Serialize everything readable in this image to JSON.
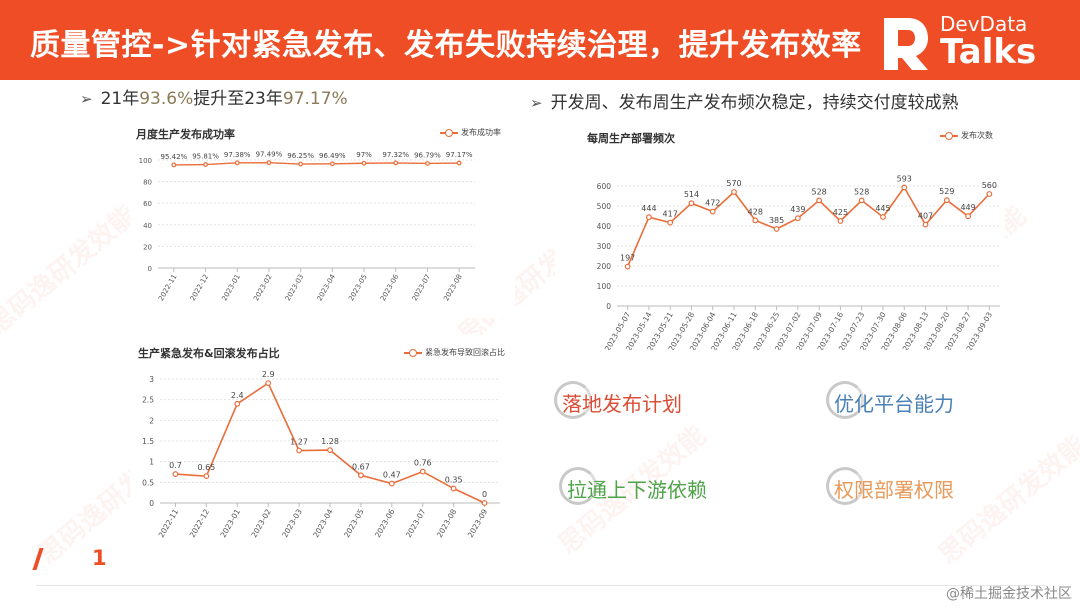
{
  "header": {
    "title": "质量管控->针对紧急发布、发布失败持续治理，提升发布效率",
    "logo_small": "DevData",
    "logo_big": "Talks"
  },
  "bullets": {
    "left": {
      "pre": "21年",
      "v1": "93.6%",
      "mid": "提升至23年",
      "v2": "97.17%"
    },
    "right": {
      "text": "开发周、发布周生产发布频次稳定，持续交付度较成熟"
    }
  },
  "chart_data": [
    {
      "type": "line",
      "title": "月度生产发布成功率",
      "legend": "发布成功率",
      "categories": [
        "2022-11",
        "2022-12",
        "2023-01",
        "2023-02",
        "2023-03",
        "2023-04",
        "2023-05",
        "2023-06",
        "2023-07",
        "2023-08"
      ],
      "values": [
        95.42,
        95.81,
        97.38,
        97.49,
        96.25,
        96.49,
        97,
        97.32,
        96.79,
        97.17
      ],
      "labels": [
        "95.42%",
        "95.81%",
        "97.38%",
        "97.49%",
        "96.25%",
        "96.49%",
        "97%",
        "97.32%",
        "96.79%",
        "97.17%"
      ],
      "yticks": [
        0,
        20,
        40,
        60,
        80,
        100
      ],
      "ylim": [
        0,
        100
      ],
      "grid": true,
      "legend_position": "top-right"
    },
    {
      "type": "line",
      "title": "每周生产部署频次",
      "legend": "发布次数",
      "categories": [
        "2023-05-07",
        "2023-05-14",
        "2023-05-21",
        "2023-05-28",
        "2023-06-04",
        "2023-06-11",
        "2023-06-18",
        "2023-06-25",
        "2023-07-02",
        "2023-07-09",
        "2023-07-16",
        "2023-07-23",
        "2023-07-30",
        "2023-08-06",
        "2023-08-13",
        "2023-08-20",
        "2023-08-27",
        "2023-09-03"
      ],
      "values": [
        197,
        444,
        417,
        514,
        472,
        570,
        428,
        385,
        439,
        528,
        425,
        528,
        445,
        593,
        407,
        529,
        449,
        560
      ],
      "labels": [
        "197",
        "444",
        "417",
        "514",
        "472",
        "570",
        "428",
        "385",
        "439",
        "528",
        "425",
        "528",
        "445",
        "593",
        "407",
        "529",
        "449",
        "560"
      ],
      "yticks": [
        0,
        100,
        200,
        300,
        400,
        500,
        600
      ],
      "ylim": [
        0,
        600
      ],
      "grid": true,
      "legend_position": "top-right"
    },
    {
      "type": "line",
      "title": "生产紧急发布&回滚发布占比",
      "legend": "紧急发布导致回滚占比",
      "categories": [
        "2022-11",
        "2022-12",
        "2023-01",
        "2023-02",
        "2023-03",
        "2023-04",
        "2023-05",
        "2023-06",
        "2023-07",
        "2023-08",
        "2023-09"
      ],
      "values": [
        0.7,
        0.65,
        2.4,
        2.9,
        1.27,
        1.28,
        0.67,
        0.47,
        0.76,
        0.35,
        0
      ],
      "labels": [
        "0.7",
        "0.65",
        "2.4",
        "2.9",
        "1.27",
        "1.28",
        "0.67",
        "0.47",
        "0.76",
        "0.35",
        "0"
      ],
      "yticks": [
        0,
        0.5,
        1,
        1.5,
        2,
        2.5,
        3
      ],
      "ylim": [
        0,
        3
      ],
      "grid": true,
      "legend_position": "top-right"
    }
  ],
  "actions": {
    "plan": "落地发布计划",
    "platform": "优化平台能力",
    "deps": "拉通上下游依赖",
    "perm": "权限部署权限"
  },
  "footer": {
    "page": "1",
    "source": "@稀土掘金技术社区"
  },
  "watermark": "思码逸研发效能",
  "colors": {
    "brand": "#ee4d25",
    "line": "#ea6d3a"
  }
}
